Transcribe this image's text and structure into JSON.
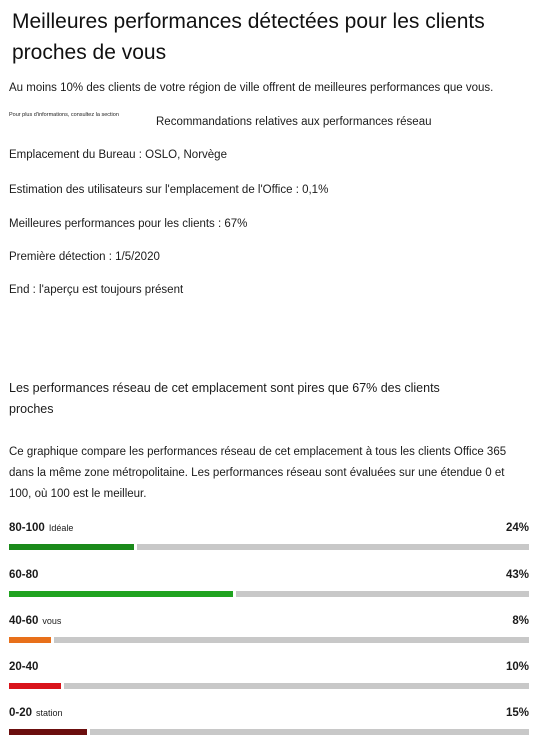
{
  "header": {
    "title": "Meilleures performances détectées pour les clients proches de vous"
  },
  "summary": {
    "intro": "Au moins 10% des clients de votre région de ville offrent de meilleures performances que vous.",
    "more_info_prefix": "Pour plus d'informations, consultez la section",
    "recommendations_link": "Recommandations relatives aux performances réseau",
    "office_location": "Emplacement du Bureau : OSLO, Norvège",
    "users_estimate": "Estimation des utilisateurs sur l'emplacement de l'Office : 0,1%",
    "better_clients": "Meilleures performances pour les clients : 67%",
    "first_detected": "Première détection : 1/5/2020",
    "end": "End : l'aperçu est toujours présent"
  },
  "comparison": {
    "heading": "Les performances réseau de cet emplacement sont pires que 67% des clients proches",
    "description": "Ce graphique compare les performances réseau de cet emplacement à tous les clients Office 365 dans la même zone métropolitaine. Les performances réseau sont évaluées sur une étendue 0 et 100, où 100 est le meilleur.",
    "rows": [
      {
        "range": "80-100",
        "tag": "Idéale",
        "percent_label": "24%",
        "fraction": 0.24,
        "color": "#1a8a1a"
      },
      {
        "range": "60-80",
        "tag": "",
        "percent_label": "43%",
        "fraction": 0.43,
        "color": "#20a320"
      },
      {
        "range": "40-60",
        "tag": "vous",
        "percent_label": "8%",
        "fraction": 0.08,
        "color": "#e8701a"
      },
      {
        "range": "20-40",
        "tag": "",
        "percent_label": "10%",
        "fraction": 0.1,
        "color": "#d9141b"
      },
      {
        "range": "0-20",
        "tag": "station",
        "percent_label": "15%",
        "fraction": 0.15,
        "color": "#6b0e0e"
      }
    ]
  }
}
